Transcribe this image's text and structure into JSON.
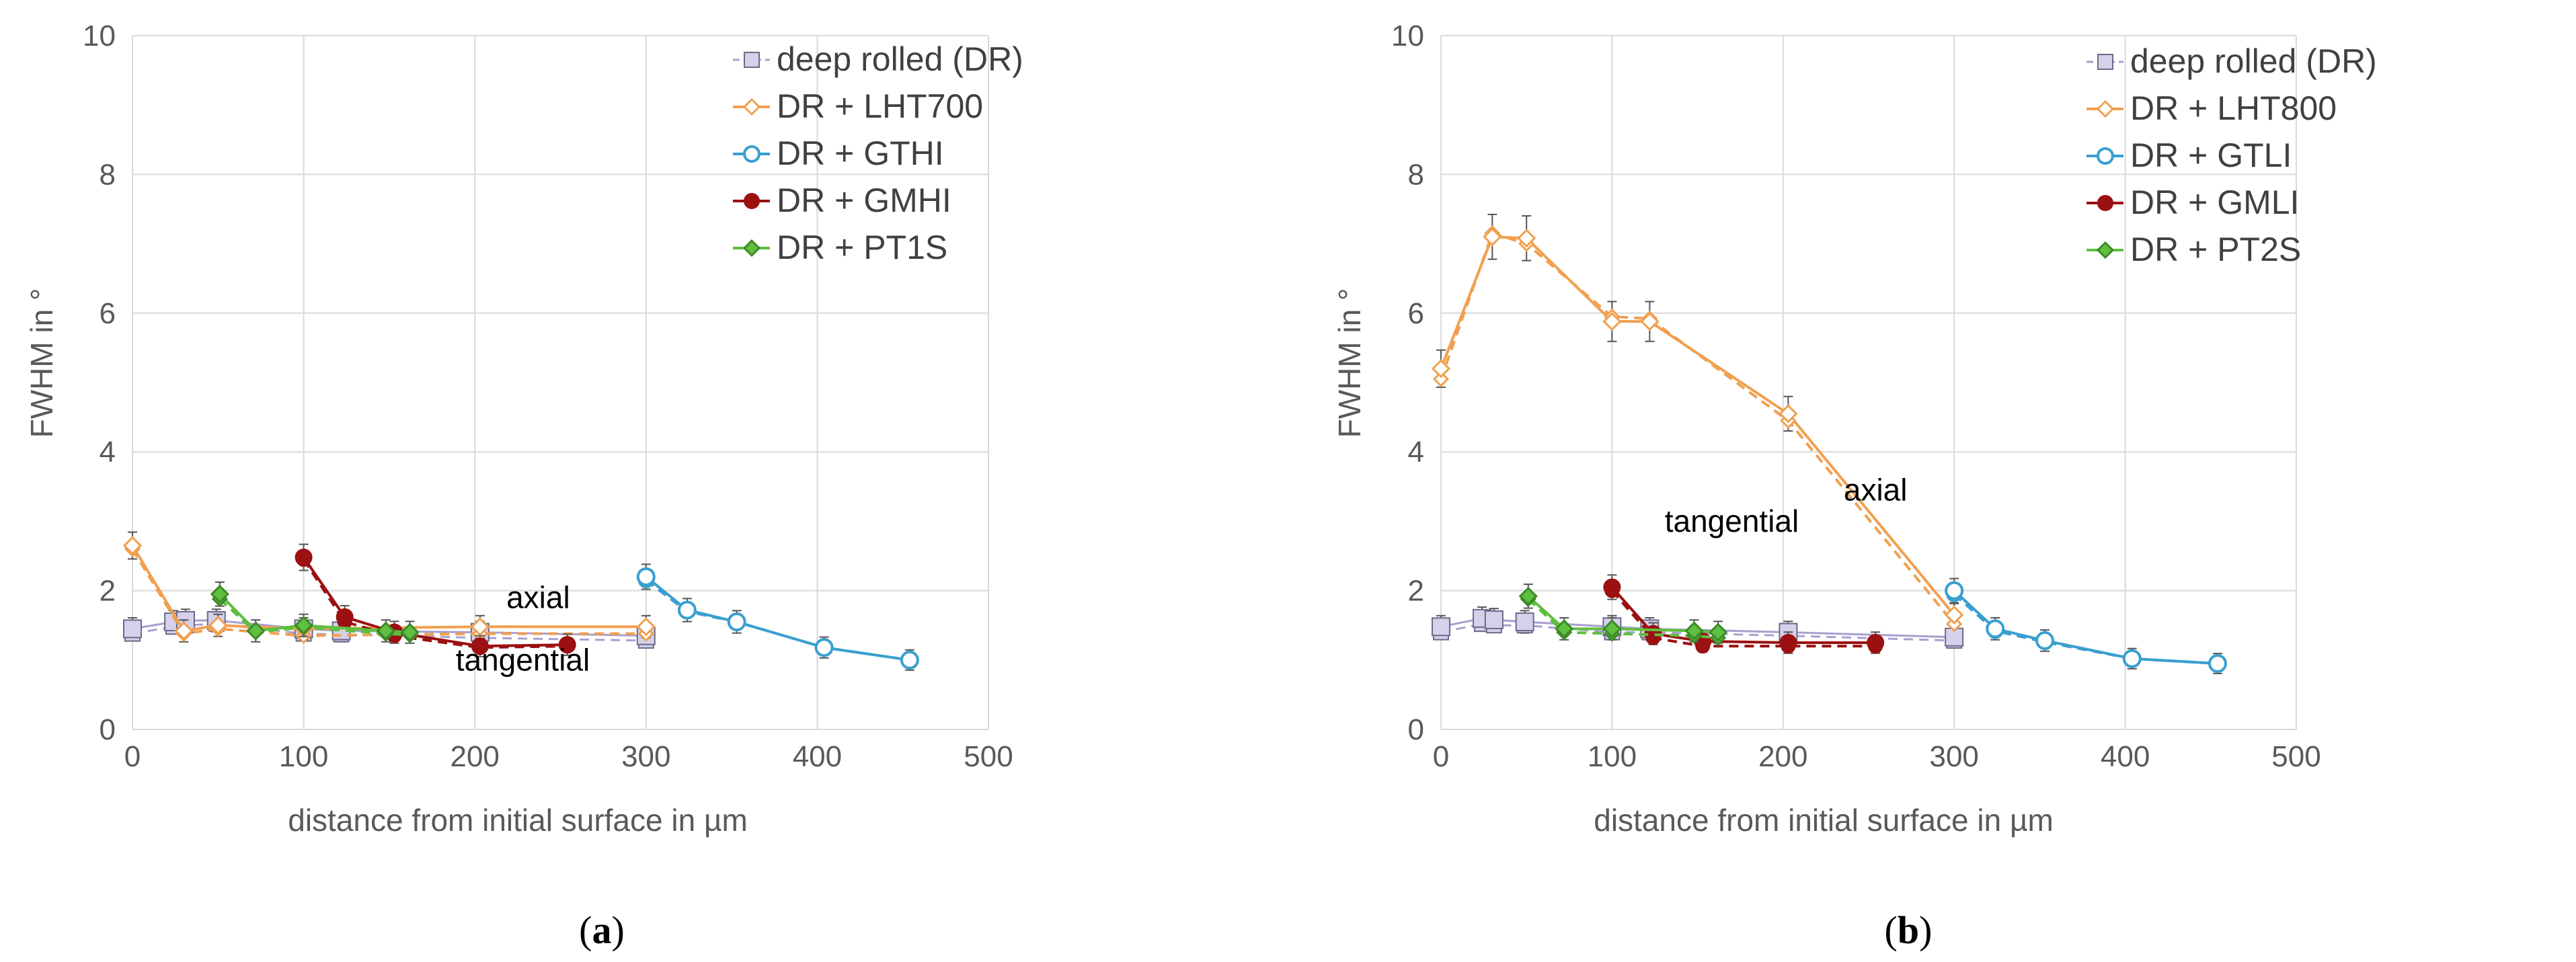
{
  "chart_data": [
    {
      "type": "line",
      "panel_label": "(a)",
      "panel_letter": "a",
      "xlabel": "distance from initial surface in µm",
      "ylabel": "FWHM in °",
      "xlim": [
        0,
        500
      ],
      "ylim": [
        0,
        10
      ],
      "xticks": [
        0,
        100,
        200,
        300,
        400,
        500
      ],
      "yticks": [
        0,
        2,
        4,
        6,
        8,
        10
      ],
      "grid": true,
      "legend_position": "top-right",
      "annotations": [
        {
          "text": "axial",
          "x": 237,
          "y": 1.75
        },
        {
          "text": "tangential",
          "x": 228,
          "y": 0.85
        }
      ],
      "series": [
        {
          "name": "deep rolled (DR)",
          "color": "#a89fcf",
          "marker": "square",
          "axial": [
            [
              0,
              1.45
            ],
            [
              24,
              1.55
            ],
            [
              31,
              1.57
            ],
            [
              49,
              1.57
            ],
            [
              100,
              1.45
            ],
            [
              122,
              1.42
            ],
            [
              203,
              1.4
            ],
            [
              300,
              1.35
            ]
          ],
          "tangential": [
            [
              0,
              1.38
            ],
            [
              24,
              1.48
            ],
            [
              31,
              1.5
            ],
            [
              49,
              1.52
            ],
            [
              100,
              1.38
            ],
            [
              122,
              1.37
            ],
            [
              203,
              1.32
            ],
            [
              300,
              1.28
            ]
          ]
        },
        {
          "name": "DR + LHT700",
          "color": "#f0a050",
          "marker": "diamond",
          "axial": [
            [
              0,
              2.65
            ],
            [
              30,
              1.42
            ],
            [
              50,
              1.5
            ],
            [
              100,
              1.45
            ],
            [
              203,
              1.48
            ],
            [
              300,
              1.48
            ]
          ],
          "tangential": [
            [
              0,
              2.6
            ],
            [
              30,
              1.38
            ],
            [
              50,
              1.45
            ],
            [
              100,
              1.35
            ],
            [
              203,
              1.38
            ],
            [
              300,
              1.38
            ]
          ]
        },
        {
          "name": "DR + GTHI",
          "color": "#3a9fcf",
          "marker": "circle",
          "axial": [
            [
              300,
              2.2
            ],
            [
              324,
              1.72
            ],
            [
              353,
              1.55
            ],
            [
              404,
              1.18
            ],
            [
              454,
              1.0
            ]
          ],
          "tangential": [
            [
              300,
              2.15
            ],
            [
              324,
              1.7
            ],
            [
              353,
              1.55
            ],
            [
              404,
              1.18
            ],
            [
              454,
              1.0
            ]
          ]
        },
        {
          "name": "DR + GMHI",
          "color": "#9b1010",
          "marker": "dot",
          "axial": [
            [
              100,
              2.48
            ],
            [
              124,
              1.62
            ],
            [
              153,
              1.4
            ],
            [
              203,
              1.2
            ],
            [
              254,
              1.22
            ]
          ],
          "tangential": [
            [
              100,
              2.45
            ],
            [
              124,
              1.55
            ],
            [
              153,
              1.35
            ],
            [
              203,
              1.18
            ],
            [
              254,
              1.2
            ]
          ]
        },
        {
          "name": "DR + PT1S",
          "color": "#5fbf3f",
          "marker": "diamond",
          "axial": [
            [
              51,
              1.95
            ],
            [
              72,
              1.42
            ],
            [
              100,
              1.5
            ],
            [
              148,
              1.42
            ],
            [
              162,
              1.4
            ]
          ],
          "tangential": [
            [
              51,
              1.88
            ],
            [
              72,
              1.4
            ],
            [
              100,
              1.47
            ],
            [
              148,
              1.38
            ],
            [
              162,
              1.36
            ]
          ]
        }
      ]
    },
    {
      "type": "line",
      "panel_label": "(b)",
      "panel_letter": "b",
      "xlabel": "distance from initial surface in µm",
      "ylabel": "FWHM in °",
      "xlim": [
        0,
        500
      ],
      "ylim": [
        0,
        10
      ],
      "xticks": [
        0,
        100,
        200,
        300,
        400,
        500
      ],
      "yticks": [
        0,
        2,
        4,
        6,
        8,
        10
      ],
      "grid": true,
      "legend_position": "top-right",
      "annotations": [
        {
          "text": "tangential",
          "x": 170,
          "y": 2.85
        },
        {
          "text": "axial",
          "x": 254,
          "y": 3.3
        }
      ],
      "series": [
        {
          "name": "deep rolled (DR)",
          "color": "#a89fcf",
          "marker": "square",
          "axial": [
            [
              0,
              1.48
            ],
            [
              24,
              1.6
            ],
            [
              31,
              1.58
            ],
            [
              49,
              1.55
            ],
            [
              100,
              1.48
            ],
            [
              122,
              1.45
            ],
            [
              203,
              1.4
            ],
            [
              300,
              1.33
            ]
          ],
          "tangential": [
            [
              0,
              1.4
            ],
            [
              24,
              1.52
            ],
            [
              31,
              1.5
            ],
            [
              49,
              1.5
            ],
            [
              100,
              1.4
            ],
            [
              122,
              1.4
            ],
            [
              203,
              1.35
            ],
            [
              300,
              1.28
            ]
          ]
        },
        {
          "name": "DR + LHT800",
          "color": "#f0a050",
          "marker": "diamond",
          "axial": [
            [
              0,
              5.2
            ],
            [
              30,
              7.1
            ],
            [
              50,
              7.08
            ],
            [
              100,
              5.88
            ],
            [
              122,
              5.88
            ],
            [
              203,
              4.55
            ],
            [
              300,
              1.65
            ]
          ],
          "tangential": [
            [
              0,
              5.05
            ],
            [
              30,
              7.15
            ],
            [
              50,
              7.0
            ],
            [
              100,
              5.95
            ],
            [
              122,
              5.92
            ],
            [
              203,
              4.45
            ],
            [
              300,
              1.52
            ]
          ]
        },
        {
          "name": "DR + GTLI",
          "color": "#3a9fcf",
          "marker": "circle",
          "axial": [
            [
              300,
              2.0
            ],
            [
              324,
              1.45
            ],
            [
              353,
              1.28
            ],
            [
              404,
              1.02
            ],
            [
              454,
              0.95
            ]
          ],
          "tangential": [
            [
              300,
              1.95
            ],
            [
              324,
              1.42
            ],
            [
              353,
              1.26
            ],
            [
              404,
              1.02
            ],
            [
              454,
              0.95
            ]
          ]
        },
        {
          "name": "DR + GMLI",
          "color": "#9b1010",
          "marker": "dot",
          "axial": [
            [
              100,
              2.05
            ],
            [
              124,
              1.38
            ],
            [
              153,
              1.27
            ],
            [
              203,
              1.25
            ],
            [
              254,
              1.25
            ]
          ],
          "tangential": [
            [
              100,
              2.0
            ],
            [
              124,
              1.32
            ],
            [
              153,
              1.2
            ],
            [
              203,
              1.2
            ],
            [
              254,
              1.2
            ]
          ]
        },
        {
          "name": "DR + PT2S",
          "color": "#5fbf3f",
          "marker": "diamond",
          "axial": [
            [
              51,
              1.92
            ],
            [
              72,
              1.45
            ],
            [
              100,
              1.45
            ],
            [
              148,
              1.42
            ],
            [
              162,
              1.4
            ]
          ],
          "tangential": [
            [
              51,
              1.88
            ],
            [
              72,
              1.4
            ],
            [
              100,
              1.38
            ],
            [
              148,
              1.35
            ],
            [
              162,
              1.32
            ]
          ]
        }
      ]
    }
  ]
}
